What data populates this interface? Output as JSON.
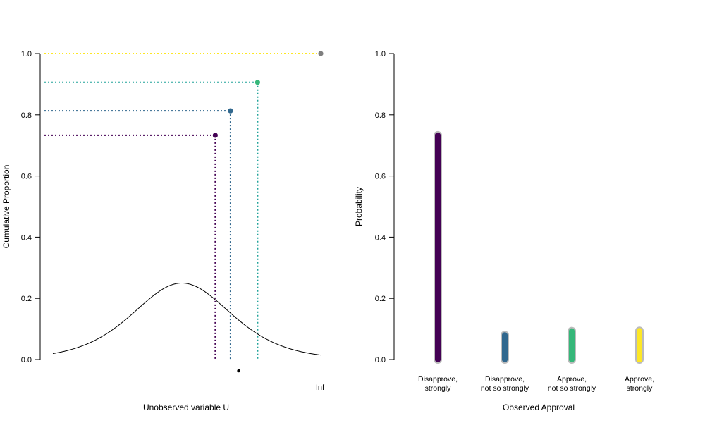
{
  "colors": {
    "purple": "#440154",
    "blue": "#31688e",
    "teal": "#21a39a",
    "green": "#35b779",
    "yellow": "#fde725",
    "gray": "#7f7f7f",
    "axis": "#000000"
  },
  "chart_data": [
    {
      "type": "line",
      "title": "",
      "xlabel": "Unobserved variable U",
      "ylabel": "Cumulative Proportion",
      "ylim": [
        0,
        1
      ],
      "xlim": [
        -3.9,
        4.2
      ],
      "yticks": [
        0.0,
        0.2,
        0.4,
        0.6,
        0.8,
        1.0
      ],
      "ytick_labels": [
        "0.0",
        "0.2",
        "0.4",
        "0.6",
        "0.8",
        "1.0"
      ],
      "x_tick_label": "Inf",
      "grid": false,
      "series": [
        {
          "curve": "logistic density",
          "mean": 0,
          "scale": 1,
          "color": "#000000"
        }
      ],
      "cutpoints": [
        {
          "x": 1.01,
          "cumulative": 0.733,
          "color": "#440154",
          "dot_color": "#440154"
        },
        {
          "x": 1.47,
          "cumulative": 0.813,
          "color": "#31688e",
          "dot_color": "#31688e"
        },
        {
          "x": 2.29,
          "cumulative": 0.906,
          "color": "#21a39a",
          "dot_color": "#35b779"
        },
        {
          "x": 6.0,
          "cumulative": 1.0,
          "color": "#fde725",
          "dot_color": "#7f7f7f",
          "x_label": "Inf"
        }
      ],
      "marker_below_axis": {
        "x": 1.72
      }
    },
    {
      "type": "bar",
      "title": "",
      "xlabel": "Observed Approval",
      "ylabel": "Probability",
      "ylim": [
        0,
        1
      ],
      "yticks": [
        0.0,
        0.2,
        0.4,
        0.6,
        0.8,
        1.0
      ],
      "ytick_labels": [
        "0.0",
        "0.2",
        "0.4",
        "0.6",
        "0.8",
        "1.0"
      ],
      "grid": false,
      "categories": [
        [
          "Disapprove,",
          "strongly"
        ],
        [
          "Disapprove,",
          "not so strongly"
        ],
        [
          "Approve,",
          "not so strongly"
        ],
        [
          "Approve,",
          "strongly"
        ]
      ],
      "values": [
        0.733,
        0.08,
        0.093,
        0.094
      ],
      "colors": [
        "#440154",
        "#31688e",
        "#35b779",
        "#fde725"
      ]
    }
  ]
}
